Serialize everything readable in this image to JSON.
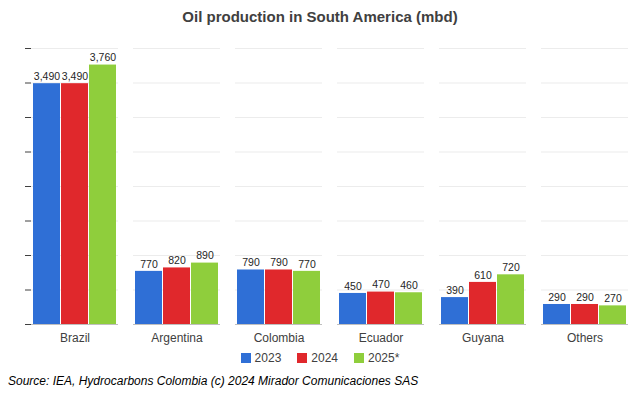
{
  "chart_data": {
    "type": "bar",
    "title": "Oil production in South America (mbd)",
    "categories": [
      "Brazil",
      "Argentina",
      "Colombia",
      "Ecuador",
      "Guyana",
      "Others"
    ],
    "series": [
      {
        "name": "2023",
        "color": "#2f6fd6",
        "values": [
          3490,
          770,
          790,
          450,
          390,
          290
        ],
        "value_labels": [
          "3,490",
          "770",
          "790",
          "450",
          "390",
          "290"
        ]
      },
      {
        "name": "2024",
        "color": "#e0282c",
        "values": [
          3490,
          820,
          790,
          470,
          610,
          290
        ],
        "value_labels": [
          "3,490",
          "820",
          "790",
          "470",
          "610",
          "290"
        ]
      },
      {
        "name": "2025*",
        "color": "#8fce3c",
        "values": [
          3760,
          890,
          770,
          460,
          720,
          270
        ],
        "value_labels": [
          "3,760",
          "890",
          "770",
          "460",
          "720",
          "270"
        ]
      }
    ],
    "ylim": [
      0,
      4000
    ],
    "yticks": [
      0,
      500,
      1000,
      1500,
      2000,
      2500,
      3000,
      3500,
      4000
    ],
    "grid": true,
    "legend": "bottom",
    "data_labels": true,
    "tick_labels": "x",
    "caption": "Source: IEA, Hydrocarbons Colombia (c) 2024 Mirador Comunicaciones SAS"
  }
}
